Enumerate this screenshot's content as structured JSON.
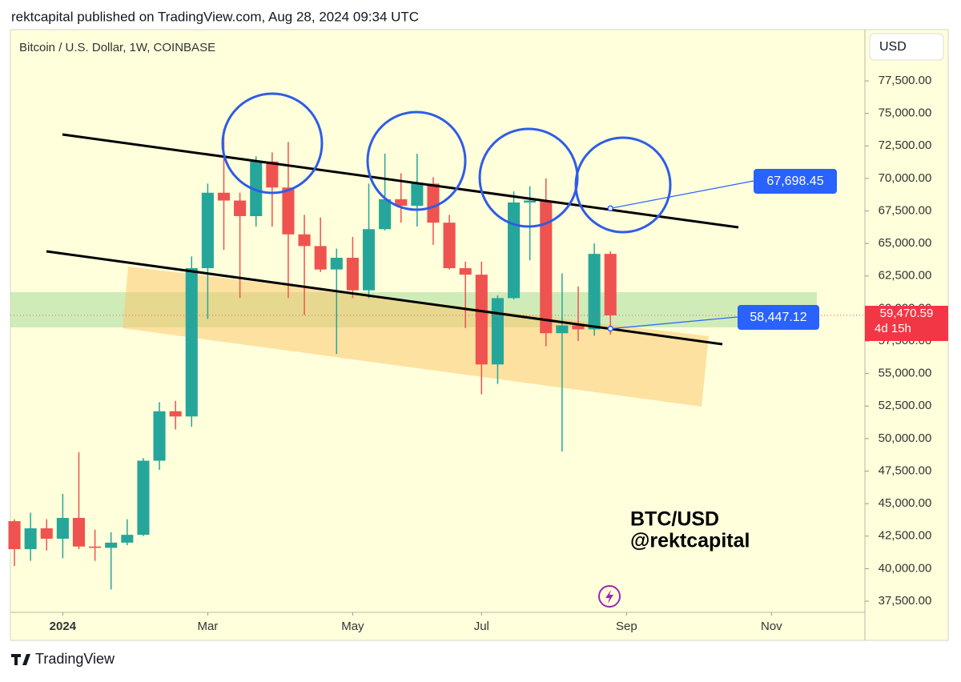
{
  "header": {
    "publisher": "rektcapital published on TradingView.com, Aug 28, 2024 09:34 UTC",
    "brand": "TradingView"
  },
  "chart_data": {
    "type": "candlestick",
    "title": "Bitcoin / U.S. Dollar, 1W, COINBASE",
    "currency": "USD",
    "watermark": [
      "BTC/USD",
      "@rektcapital"
    ],
    "up_color": "#26a69a",
    "down_color": "#ef5350",
    "open": [
      43650,
      41500,
      43100,
      42300,
      43900,
      41700,
      41600,
      42000,
      42600,
      48300,
      52100,
      51700,
      63100,
      68900,
      68300,
      67100,
      71300,
      69300,
      65700,
      64800,
      63000,
      63900,
      61400,
      66100,
      68400,
      67900,
      69600,
      66600,
      63100,
      62600,
      55700,
      60800,
      68150,
      68300,
      58100,
      58700,
      58400,
      64200
    ],
    "high": [
      43800,
      44300,
      43800,
      45750,
      48950,
      43000,
      42800,
      43800,
      48500,
      52800,
      52900,
      64000,
      69600,
      73800,
      68900,
      71700,
      72000,
      72800,
      67200,
      67000,
      64600,
      65500,
      69600,
      71900,
      70400,
      71900,
      70100,
      67200,
      63600,
      63600,
      61000,
      69000,
      69400,
      70000,
      62700,
      61700,
      65000,
      64400
    ],
    "low": [
      40200,
      40600,
      41400,
      40800,
      41500,
      40600,
      38400,
      41800,
      42500,
      47600,
      50700,
      50900,
      59200,
      64500,
      60800,
      66300,
      66300,
      60800,
      59500,
      62800,
      56500,
      60800,
      60800,
      66000,
      66600,
      66300,
      64900,
      63000,
      58500,
      53400,
      54200,
      60700,
      63700,
      57100,
      49000,
      57500,
      57900,
      58000
    ],
    "close": [
      41500,
      43100,
      42300,
      43900,
      41700,
      41600,
      42000,
      42600,
      48300,
      52100,
      51700,
      63100,
      68900,
      68300,
      67100,
      71300,
      69300,
      65700,
      64800,
      63000,
      63900,
      61400,
      66100,
      68400,
      67900,
      69600,
      66600,
      63100,
      62600,
      55700,
      60800,
      68150,
      68300,
      58100,
      58700,
      58400,
      64200,
      59470.59
    ],
    "xlim": [
      -0.25,
      52.8
    ],
    "xticks": [
      {
        "value": 3,
        "label": "2024"
      },
      {
        "value": 12,
        "label": "Mar"
      },
      {
        "value": 21,
        "label": "May"
      },
      {
        "value": 29,
        "label": "Jul"
      },
      {
        "value": 38,
        "label": "Sep"
      },
      {
        "value": 47,
        "label": "Nov"
      }
    ],
    "ylim": [
      36640,
      81440
    ],
    "yticks": [
      {
        "value": 37500,
        "label": "37,500.00"
      },
      {
        "value": 40000,
        "label": "40,000.00"
      },
      {
        "value": 42500,
        "label": "42,500.00"
      },
      {
        "value": 45000,
        "label": "45,000.00"
      },
      {
        "value": 47500,
        "label": "47,500.00"
      },
      {
        "value": 50000,
        "label": "50,000.00"
      },
      {
        "value": 52500,
        "label": "52,500.00"
      },
      {
        "value": 55000,
        "label": "55,000.00"
      },
      {
        "value": 57500,
        "label": "57,500.00"
      },
      {
        "value": 60000,
        "label": "60,000.00"
      },
      {
        "value": 62500,
        "label": "62,500.00"
      },
      {
        "value": 65000,
        "label": "65,000.00"
      },
      {
        "value": 67500,
        "label": "67,500.00"
      },
      {
        "value": 70000,
        "label": "70,000.00"
      },
      {
        "value": 72500,
        "label": "72,500.00"
      },
      {
        "value": 75000,
        "label": "75,000.00"
      },
      {
        "value": 77500,
        "label": "77,500.00"
      }
    ],
    "last_price": {
      "value": 59470.59,
      "label": "59,470.59",
      "countdown": "4d 15h"
    },
    "annotations": [
      {
        "value": 67698.45,
        "label": "67,698.45"
      },
      {
        "value": 58447.12,
        "label": "58,447.12"
      }
    ]
  }
}
